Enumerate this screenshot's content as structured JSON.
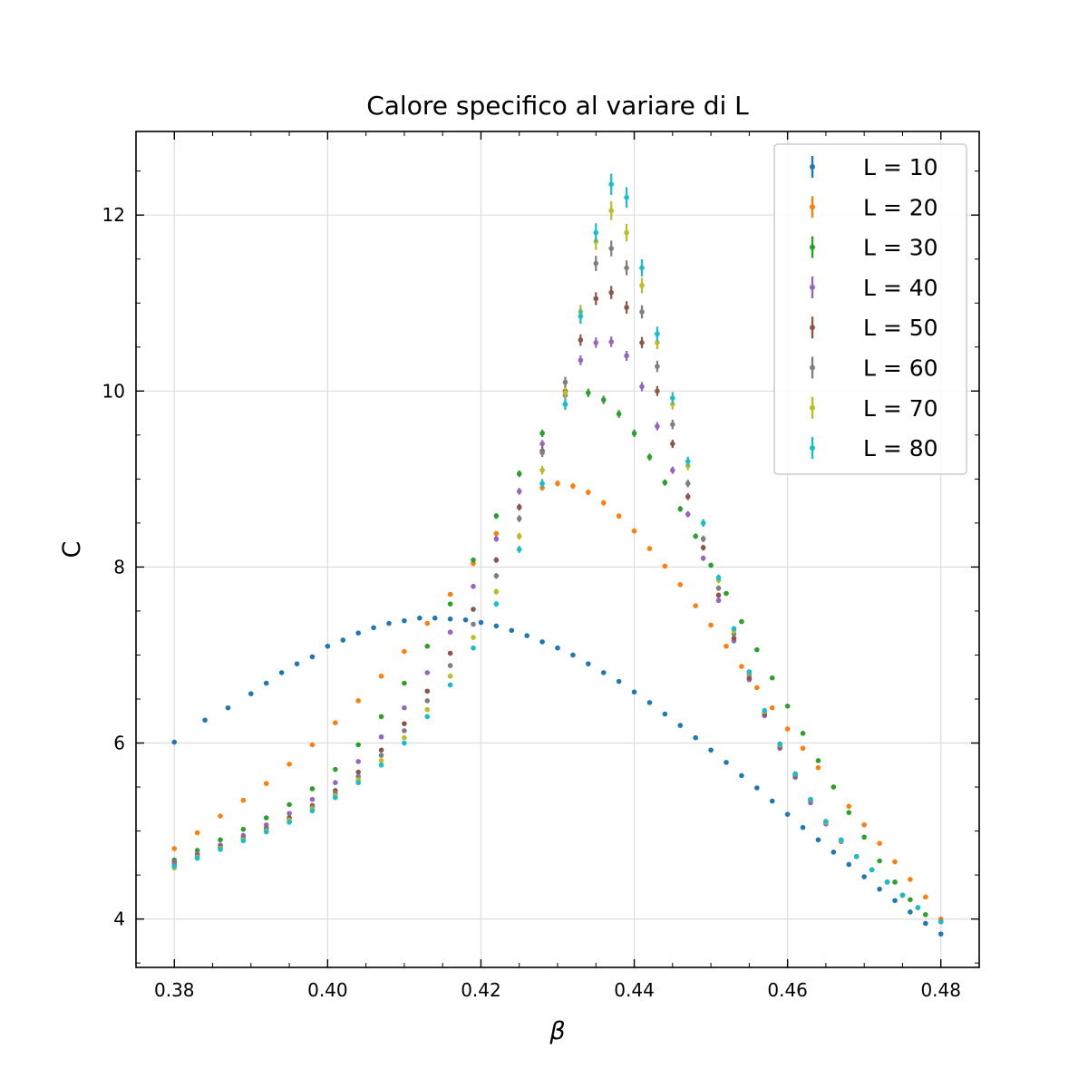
{
  "chart_data": {
    "type": "scatter",
    "title": "Calore specifico al variare di L",
    "xlabel": "β",
    "ylabel": "C",
    "xlim": [
      0.375,
      0.485
    ],
    "ylim": [
      3.45,
      12.95
    ],
    "x_ticks": [
      0.38,
      0.4,
      0.42,
      0.44,
      0.46,
      0.48
    ],
    "x_tick_labels": [
      "0.38",
      "0.40",
      "0.42",
      "0.44",
      "0.46",
      "0.48"
    ],
    "y_ticks": [
      4,
      6,
      8,
      10,
      12
    ],
    "y_tick_labels": [
      "4",
      "6",
      "8",
      "10",
      "12"
    ],
    "grid": true,
    "legend_position": "top-right",
    "error_bars": true,
    "series": [
      {
        "name": "L = 10",
        "color": "#1f77b4",
        "x": [
          0.38,
          0.384,
          0.387,
          0.39,
          0.392,
          0.394,
          0.396,
          0.398,
          0.4,
          0.402,
          0.404,
          0.406,
          0.408,
          0.41,
          0.412,
          0.414,
          0.416,
          0.418,
          0.42,
          0.422,
          0.424,
          0.426,
          0.428,
          0.43,
          0.432,
          0.434,
          0.436,
          0.438,
          0.44,
          0.442,
          0.444,
          0.446,
          0.448,
          0.45,
          0.452,
          0.454,
          0.456,
          0.458,
          0.46,
          0.462,
          0.464,
          0.466,
          0.468,
          0.47,
          0.472,
          0.474,
          0.476,
          0.478,
          0.48
        ],
        "y": [
          6.01,
          6.26,
          6.4,
          6.56,
          6.68,
          6.8,
          6.9,
          6.98,
          7.1,
          7.17,
          7.25,
          7.31,
          7.36,
          7.39,
          7.42,
          7.42,
          7.41,
          7.4,
          7.37,
          7.33,
          7.28,
          7.22,
          7.15,
          7.08,
          7.0,
          6.9,
          6.8,
          6.7,
          6.58,
          6.46,
          6.33,
          6.2,
          6.06,
          5.92,
          5.78,
          5.63,
          5.49,
          5.34,
          5.19,
          5.04,
          4.9,
          4.76,
          4.62,
          4.48,
          4.34,
          4.21,
          4.08,
          3.95,
          3.83
        ]
      },
      {
        "name": "L = 20",
        "color": "#ff7f0e",
        "x": [
          0.38,
          0.383,
          0.386,
          0.389,
          0.392,
          0.395,
          0.398,
          0.401,
          0.404,
          0.407,
          0.41,
          0.413,
          0.416,
          0.419,
          0.422,
          0.425,
          0.428,
          0.43,
          0.432,
          0.434,
          0.436,
          0.438,
          0.44,
          0.442,
          0.444,
          0.446,
          0.448,
          0.45,
          0.452,
          0.454,
          0.456,
          0.458,
          0.46,
          0.462,
          0.464,
          0.466,
          0.468,
          0.47,
          0.472,
          0.474,
          0.476,
          0.478,
          0.48
        ],
        "y": [
          4.8,
          4.98,
          5.17,
          5.35,
          5.54,
          5.76,
          5.98,
          6.23,
          6.48,
          6.76,
          7.04,
          7.36,
          7.69,
          8.04,
          8.38,
          8.68,
          8.9,
          8.95,
          8.92,
          8.85,
          8.73,
          8.58,
          8.41,
          8.21,
          8.01,
          7.8,
          7.56,
          7.34,
          7.1,
          6.87,
          6.63,
          6.4,
          6.16,
          5.94,
          5.72,
          5.5,
          5.28,
          5.07,
          4.86,
          4.65,
          4.45,
          4.25,
          4.0
        ]
      },
      {
        "name": "L = 30",
        "color": "#2ca02c",
        "x": [
          0.38,
          0.383,
          0.386,
          0.389,
          0.392,
          0.395,
          0.398,
          0.401,
          0.404,
          0.407,
          0.41,
          0.413,
          0.416,
          0.419,
          0.422,
          0.425,
          0.428,
          0.431,
          0.434,
          0.436,
          0.438,
          0.44,
          0.442,
          0.444,
          0.446,
          0.448,
          0.45,
          0.452,
          0.454,
          0.456,
          0.458,
          0.46,
          0.462,
          0.464,
          0.466,
          0.468,
          0.47,
          0.472,
          0.474,
          0.476,
          0.478,
          0.48
        ],
        "y": [
          4.67,
          4.78,
          4.9,
          5.02,
          5.15,
          5.3,
          5.48,
          5.7,
          5.98,
          6.3,
          6.68,
          7.1,
          7.58,
          8.08,
          8.58,
          9.06,
          9.52,
          9.85,
          9.98,
          9.9,
          9.74,
          9.52,
          9.25,
          8.96,
          8.66,
          8.35,
          8.02,
          7.7,
          7.38,
          7.06,
          6.74,
          6.42,
          6.11,
          5.8,
          5.5,
          5.21,
          4.93,
          4.66,
          4.42,
          4.22,
          4.05,
          3.97
        ]
      },
      {
        "name": "L = 40",
        "color": "#9467bd",
        "x": [
          0.38,
          0.383,
          0.386,
          0.389,
          0.392,
          0.395,
          0.398,
          0.401,
          0.404,
          0.407,
          0.41,
          0.413,
          0.416,
          0.419,
          0.422,
          0.425,
          0.428,
          0.431,
          0.433,
          0.435,
          0.437,
          0.439,
          0.441,
          0.443,
          0.445,
          0.447,
          0.449,
          0.451,
          0.453,
          0.455,
          0.457,
          0.459,
          0.461,
          0.463,
          0.465,
          0.467,
          0.469,
          0.471,
          0.473,
          0.475,
          0.477,
          0.48
        ],
        "y": [
          4.65,
          4.74,
          4.84,
          4.95,
          5.07,
          5.2,
          5.36,
          5.55,
          5.79,
          6.07,
          6.4,
          6.8,
          7.26,
          7.78,
          8.32,
          8.86,
          9.4,
          9.95,
          10.35,
          10.55,
          10.56,
          10.4,
          10.05,
          9.6,
          9.1,
          8.6,
          8.1,
          7.62,
          7.16,
          6.72,
          6.31,
          5.94,
          5.61,
          5.32,
          5.08,
          4.88,
          4.71,
          4.56,
          4.42,
          4.27,
          4.13,
          3.97
        ]
      },
      {
        "name": "L = 50",
        "color": "#8c564b",
        "x": [
          0.38,
          0.383,
          0.386,
          0.389,
          0.392,
          0.395,
          0.398,
          0.401,
          0.404,
          0.407,
          0.41,
          0.413,
          0.416,
          0.419,
          0.422,
          0.425,
          0.428,
          0.431,
          0.433,
          0.435,
          0.437,
          0.439,
          0.441,
          0.443,
          0.445,
          0.447,
          0.449,
          0.451,
          0.453,
          0.455,
          0.457,
          0.459,
          0.461,
          0.463,
          0.465,
          0.467,
          0.469,
          0.471,
          0.473,
          0.475,
          0.477,
          0.48
        ],
        "y": [
          4.63,
          4.72,
          4.82,
          4.92,
          5.03,
          5.15,
          5.29,
          5.46,
          5.67,
          5.92,
          6.22,
          6.59,
          7.02,
          7.52,
          8.08,
          8.68,
          9.32,
          10.0,
          10.58,
          11.05,
          11.12,
          10.95,
          10.55,
          10.0,
          9.4,
          8.8,
          8.22,
          7.68,
          7.19,
          6.74,
          6.33,
          5.96,
          5.63,
          5.35,
          5.1,
          4.89,
          4.71,
          4.56,
          4.42,
          4.27,
          4.13,
          3.97
        ]
      },
      {
        "name": "L = 60",
        "color": "#7f7f7f",
        "x": [
          0.38,
          0.383,
          0.386,
          0.389,
          0.392,
          0.395,
          0.398,
          0.401,
          0.404,
          0.407,
          0.41,
          0.413,
          0.416,
          0.419,
          0.422,
          0.425,
          0.428,
          0.431,
          0.433,
          0.435,
          0.437,
          0.439,
          0.441,
          0.443,
          0.445,
          0.447,
          0.449,
          0.451,
          0.453,
          0.455,
          0.457,
          0.459,
          0.461,
          0.463,
          0.465,
          0.467,
          0.469,
          0.471,
          0.473,
          0.475,
          0.477,
          0.48
        ],
        "y": [
          4.62,
          4.71,
          4.81,
          4.91,
          5.02,
          5.13,
          5.27,
          5.43,
          5.62,
          5.86,
          6.14,
          6.48,
          6.88,
          7.35,
          7.9,
          8.55,
          9.3,
          10.1,
          10.85,
          11.45,
          11.62,
          11.4,
          10.9,
          10.28,
          9.62,
          8.95,
          8.32,
          7.76,
          7.24,
          6.78,
          6.35,
          5.97,
          5.64,
          5.35,
          5.1,
          4.89,
          4.71,
          4.56,
          4.42,
          4.27,
          4.13,
          3.97
        ]
      },
      {
        "name": "L = 70",
        "color": "#bcbd22",
        "x": [
          0.38,
          0.383,
          0.386,
          0.389,
          0.392,
          0.395,
          0.398,
          0.401,
          0.404,
          0.407,
          0.41,
          0.413,
          0.416,
          0.419,
          0.422,
          0.425,
          0.428,
          0.431,
          0.433,
          0.435,
          0.437,
          0.439,
          0.441,
          0.443,
          0.445,
          0.447,
          0.449,
          0.451,
          0.453,
          0.455,
          0.457,
          0.459,
          0.461,
          0.463,
          0.465,
          0.467,
          0.469,
          0.471,
          0.473,
          0.475,
          0.477,
          0.48
        ],
        "y": [
          4.58,
          4.7,
          4.8,
          4.9,
          5.0,
          5.12,
          5.25,
          5.4,
          5.58,
          5.8,
          6.06,
          6.38,
          6.76,
          7.2,
          7.72,
          8.35,
          9.1,
          9.98,
          10.9,
          11.7,
          12.05,
          11.8,
          11.2,
          10.55,
          9.85,
          9.15,
          8.5,
          7.85,
          7.27,
          6.8,
          6.36,
          5.98,
          5.65,
          5.36,
          5.1,
          4.89,
          4.71,
          4.56,
          4.42,
          4.27,
          4.13,
          3.97
        ]
      },
      {
        "name": "L = 80",
        "color": "#17becf",
        "x": [
          0.38,
          0.383,
          0.386,
          0.389,
          0.392,
          0.395,
          0.398,
          0.401,
          0.404,
          0.407,
          0.41,
          0.413,
          0.416,
          0.419,
          0.422,
          0.425,
          0.428,
          0.431,
          0.433,
          0.435,
          0.437,
          0.439,
          0.441,
          0.443,
          0.445,
          0.447,
          0.449,
          0.451,
          0.453,
          0.455,
          0.457,
          0.459,
          0.461,
          0.463,
          0.465,
          0.467,
          0.469,
          0.471,
          0.473,
          0.475,
          0.477,
          0.48
        ],
        "y": [
          4.6,
          4.69,
          4.79,
          4.89,
          4.99,
          5.1,
          5.23,
          5.38,
          5.55,
          5.75,
          6.0,
          6.3,
          6.66,
          7.08,
          7.58,
          8.2,
          8.95,
          9.85,
          10.85,
          11.8,
          12.35,
          12.2,
          11.4,
          10.65,
          9.92,
          9.2,
          8.5,
          7.88,
          7.3,
          6.81,
          6.37,
          5.99,
          5.65,
          5.36,
          5.11,
          4.9,
          4.71,
          4.56,
          4.42,
          4.27,
          4.13,
          3.97
        ]
      }
    ]
  }
}
